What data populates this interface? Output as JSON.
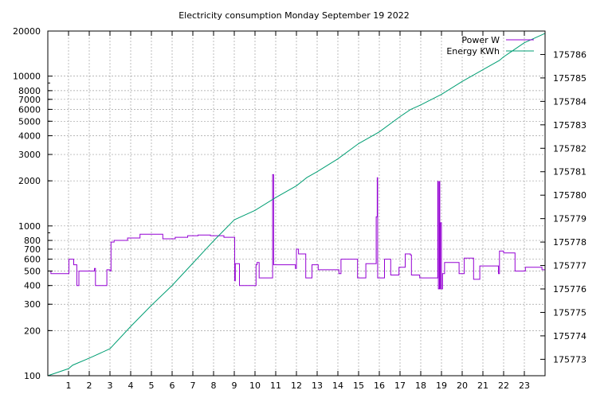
{
  "chart_data": {
    "type": "line",
    "title": "Electricity consumption Monday September 19 2022",
    "grid": true,
    "legend_placement": "top-right",
    "x_range": [
      0,
      24
    ],
    "x_ticks": [
      "1",
      "2",
      "3",
      "4",
      "5",
      "6",
      "7",
      "8",
      "9",
      "10",
      "11",
      "12",
      "13",
      "14",
      "15",
      "16",
      "17",
      "18",
      "19",
      "20",
      "21",
      "22",
      "23"
    ],
    "y_left": {
      "scale": "log",
      "range": [
        100,
        20000
      ],
      "ticks": [
        100,
        200,
        300,
        400,
        500,
        600,
        700,
        800,
        1000,
        2000,
        3000,
        4000,
        5000,
        6000,
        7000,
        8000,
        10000,
        20000
      ],
      "tick_labels": [
        "100",
        "200",
        "300",
        "400",
        "500",
        "600",
        "700",
        "800",
        "1000",
        "2000",
        "3000",
        "4000",
        "5000",
        "6000",
        "7000",
        "8000",
        "10000",
        "20000"
      ]
    },
    "y_right": {
      "scale": "linear",
      "range": [
        175772.3,
        175787.0
      ],
      "ticks": [
        175773,
        175774,
        175775,
        175776,
        175777,
        175778,
        175779,
        175780,
        175781,
        175782,
        175783,
        175784,
        175785,
        175786
      ],
      "tick_labels": [
        "175773",
        "175774",
        "175775",
        "175776",
        "175777",
        "175778",
        "175779",
        "175780",
        "175781",
        "175782",
        "175783",
        "175784",
        "175785",
        "175786"
      ]
    },
    "series": [
      {
        "name": "Power W",
        "axis": "left",
        "color": "#9400d3",
        "step": true,
        "points": [
          [
            0,
            500
          ],
          [
            0.15,
            480
          ],
          [
            1.0,
            480
          ],
          [
            1.02,
            600
          ],
          [
            1.25,
            550
          ],
          [
            1.4,
            400
          ],
          [
            1.5,
            500
          ],
          [
            2.0,
            500
          ],
          [
            2.25,
            520
          ],
          [
            2.3,
            400
          ],
          [
            2.8,
            400
          ],
          [
            2.85,
            510
          ],
          [
            3.0,
            500
          ],
          [
            3.05,
            780
          ],
          [
            3.2,
            800
          ],
          [
            3.8,
            800
          ],
          [
            3.85,
            830
          ],
          [
            4.4,
            830
          ],
          [
            4.45,
            880
          ],
          [
            5.0,
            880
          ],
          [
            5.5,
            880
          ],
          [
            5.55,
            820
          ],
          [
            6.1,
            820
          ],
          [
            6.15,
            840
          ],
          [
            6.7,
            840
          ],
          [
            6.75,
            860
          ],
          [
            7.2,
            860
          ],
          [
            7.25,
            870
          ],
          [
            7.8,
            870
          ],
          [
            7.85,
            860
          ],
          [
            8.45,
            860
          ],
          [
            8.5,
            840
          ],
          [
            9.0,
            840
          ],
          [
            9.02,
            430
          ],
          [
            9.05,
            560
          ],
          [
            9.25,
            400
          ],
          [
            9.3,
            400
          ],
          [
            10.0,
            400
          ],
          [
            10.05,
            550
          ],
          [
            10.1,
            570
          ],
          [
            10.2,
            450
          ],
          [
            10.8,
            450
          ],
          [
            10.85,
            2200
          ],
          [
            10.9,
            550
          ],
          [
            11.0,
            550
          ],
          [
            11.9,
            550
          ],
          [
            11.95,
            520
          ],
          [
            12.0,
            700
          ],
          [
            12.1,
            650
          ],
          [
            12.4,
            650
          ],
          [
            12.45,
            450
          ],
          [
            12.7,
            450
          ],
          [
            12.75,
            550
          ],
          [
            13.0,
            550
          ],
          [
            13.05,
            510
          ],
          [
            14.0,
            510
          ],
          [
            14.05,
            480
          ],
          [
            14.15,
            600
          ],
          [
            14.4,
            600
          ],
          [
            14.5,
            600
          ],
          [
            14.9,
            600
          ],
          [
            14.95,
            450
          ],
          [
            15.3,
            450
          ],
          [
            15.35,
            560
          ],
          [
            15.8,
            560
          ],
          [
            15.85,
            1150
          ],
          [
            15.9,
            2100
          ],
          [
            15.92,
            450
          ],
          [
            15.95,
            450
          ],
          [
            16.2,
            450
          ],
          [
            16.25,
            600
          ],
          [
            16.5,
            600
          ],
          [
            16.55,
            470
          ],
          [
            16.9,
            470
          ],
          [
            16.95,
            530
          ],
          [
            17.2,
            530
          ],
          [
            17.25,
            650
          ],
          [
            17.45,
            650
          ],
          [
            17.5,
            640
          ],
          [
            17.55,
            470
          ],
          [
            17.9,
            470
          ],
          [
            17.95,
            450
          ],
          [
            18.8,
            450
          ],
          [
            18.82,
            1980
          ],
          [
            18.85,
            380
          ],
          [
            18.9,
            1980
          ],
          [
            18.92,
            380
          ],
          [
            18.95,
            1050
          ],
          [
            19.0,
            380
          ],
          [
            19.05,
            480
          ],
          [
            19.15,
            570
          ],
          [
            19.8,
            570
          ],
          [
            19.85,
            480
          ],
          [
            20.05,
            480
          ],
          [
            20.1,
            610
          ],
          [
            20.5,
            610
          ],
          [
            20.55,
            440
          ],
          [
            20.8,
            440
          ],
          [
            20.85,
            540
          ],
          [
            21.7,
            540
          ],
          [
            21.75,
            480
          ],
          [
            21.8,
            680
          ],
          [
            22.0,
            660
          ],
          [
            22.5,
            660
          ],
          [
            22.55,
            500
          ],
          [
            23.0,
            500
          ],
          [
            23.05,
            530
          ],
          [
            23.8,
            530
          ],
          [
            23.85,
            510
          ],
          [
            24.0,
            510
          ]
        ]
      },
      {
        "name": "Energy KWh",
        "axis": "right",
        "color": "#009e73",
        "points": [
          [
            0,
            175772.3
          ],
          [
            1.0,
            175772.6
          ],
          [
            1.2,
            175772.75
          ],
          [
            2.0,
            175773.05
          ],
          [
            3.0,
            175773.45
          ],
          [
            4.0,
            175774.4
          ],
          [
            5.0,
            175775.3
          ],
          [
            6.0,
            175776.15
          ],
          [
            7.0,
            175777.1
          ],
          [
            8.0,
            175778.05
          ],
          [
            9.0,
            175778.95
          ],
          [
            10.0,
            175779.35
          ],
          [
            11.0,
            175779.9
          ],
          [
            12.0,
            175780.4
          ],
          [
            12.5,
            175780.75
          ],
          [
            13.0,
            175781.0
          ],
          [
            14.0,
            175781.55
          ],
          [
            15.0,
            175782.2
          ],
          [
            16.0,
            175782.7
          ],
          [
            17.0,
            175783.35
          ],
          [
            17.5,
            175783.65
          ],
          [
            18.0,
            175783.85
          ],
          [
            19.0,
            175784.3
          ],
          [
            20.0,
            175784.85
          ],
          [
            21.0,
            175785.35
          ],
          [
            21.8,
            175785.75
          ],
          [
            22.0,
            175785.9
          ],
          [
            23.0,
            175786.5
          ],
          [
            24.0,
            175786.9
          ]
        ]
      }
    ]
  }
}
